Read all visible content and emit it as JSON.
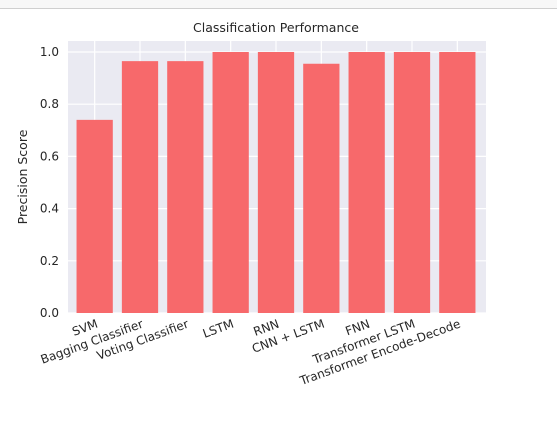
{
  "chart_data": {
    "type": "bar",
    "title": "Classification Performance",
    "xlabel": "",
    "ylabel": "Precision Score",
    "categories": [
      "SVM",
      "Bagging Classifier",
      "Voting Classifier",
      "LSTM",
      "RNN",
      "CNN + LSTM",
      "FNN",
      "Transformer LSTM",
      "Transformer Encode-Decode"
    ],
    "values": [
      0.74,
      0.965,
      0.965,
      1.0,
      1.0,
      0.955,
      1.0,
      1.0,
      1.0
    ],
    "ylim": [
      0,
      1.05
    ],
    "yticks": [
      "0.0",
      "0.2",
      "0.4",
      "0.6",
      "0.8",
      "1.0"
    ],
    "grid": true,
    "colors": {
      "bar": "#f7696b",
      "plot_bg": "#eaeaf2",
      "grid": "#ffffff"
    }
  }
}
